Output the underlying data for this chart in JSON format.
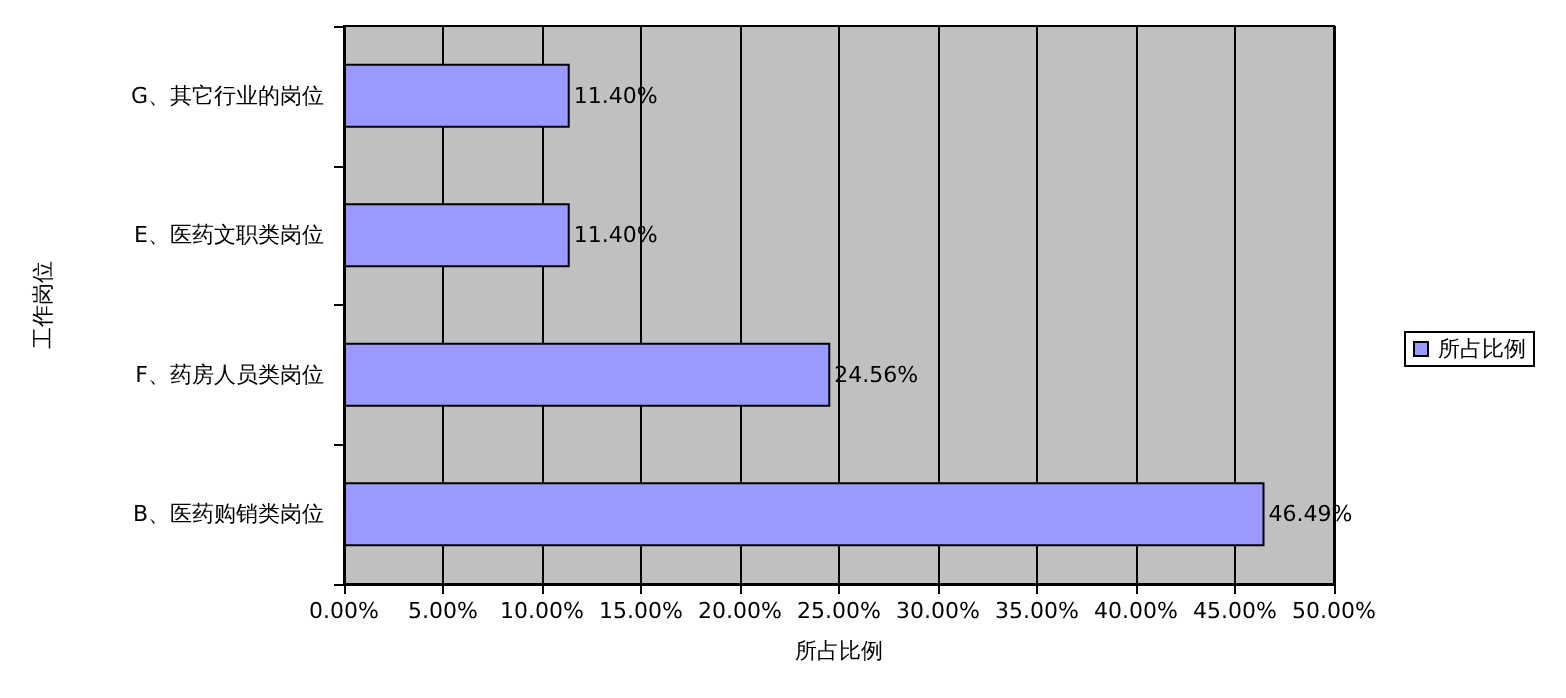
{
  "chart_data": {
    "type": "bar",
    "orientation": "horizontal",
    "xlabel": "所占比例",
    "ylabel": "工作岗位",
    "categories": [
      "G、其它行业的岗位",
      "E、医药文职类岗位",
      "F、药房人员类岗位",
      "B、医药购销类岗位"
    ],
    "series": [
      {
        "name": "所占比例",
        "color": "#9999ff",
        "values": [
          11.4,
          11.4,
          24.56,
          46.49
        ],
        "value_labels": [
          "11.40%",
          "11.40%",
          "24.56%",
          "46.49%"
        ]
      }
    ],
    "xlim": [
      0,
      50
    ],
    "xticks": [
      {
        "value": 0,
        "label": "0.00%"
      },
      {
        "value": 5,
        "label": "5.00%"
      },
      {
        "value": 10,
        "label": "10.00%"
      },
      {
        "value": 15,
        "label": "15.00%"
      },
      {
        "value": 20,
        "label": "20.00%"
      },
      {
        "value": 25,
        "label": "25.00%"
      },
      {
        "value": 30,
        "label": "30.00%"
      },
      {
        "value": 35,
        "label": "35.00%"
      },
      {
        "value": 40,
        "label": "40.00%"
      },
      {
        "value": 45,
        "label": "45.00%"
      },
      {
        "value": 50,
        "label": "50.00%"
      }
    ],
    "grid": "x",
    "legend": "right"
  }
}
